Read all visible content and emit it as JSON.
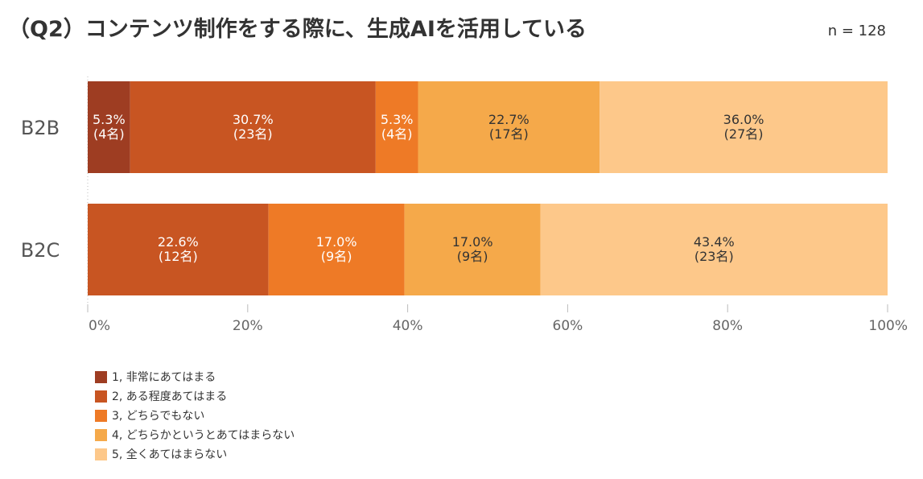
{
  "title": "（Q2）コンテンツ制作をする際に、生成AIを活用している",
  "n_label": "n = 128",
  "colors": [
    "#9e3d22",
    "#c85522",
    "#ee7a26",
    "#f5a94a",
    "#fdc88a"
  ],
  "chart_data": {
    "type": "bar",
    "orientation": "horizontal",
    "stacked": true,
    "categories": [
      "B2B",
      "B2C"
    ],
    "series": [
      {
        "name": "1, 非常にあてはまる",
        "values": [
          5.3,
          0
        ],
        "labels": [
          "5.3%\n(4名)",
          ""
        ]
      },
      {
        "name": "2, ある程度あてはまる",
        "values": [
          30.7,
          22.6
        ],
        "labels": [
          "30.7%\n(23名)",
          "22.6%\n(12名)"
        ]
      },
      {
        "name": "3, どちらでもない",
        "values": [
          5.3,
          17.0
        ],
        "labels": [
          "5.3%\n(4名)",
          "17.0%\n(9名)"
        ]
      },
      {
        "name": "4, どちらかというとあてはまらない",
        "values": [
          22.7,
          17.0
        ],
        "labels": [
          "22.7%\n(17名)",
          "17.0%\n(9名)"
        ]
      },
      {
        "name": "5, 全くあてはまらない",
        "values": [
          36.0,
          43.4
        ],
        "labels": [
          "36.0%\n(27名)",
          "43.4%\n(23名)"
        ]
      }
    ],
    "xlim": [
      0,
      100
    ],
    "xticks": [
      "0%",
      "20%",
      "40%",
      "60%",
      "80%",
      "100%"
    ],
    "legend_position": "bottom-left"
  }
}
